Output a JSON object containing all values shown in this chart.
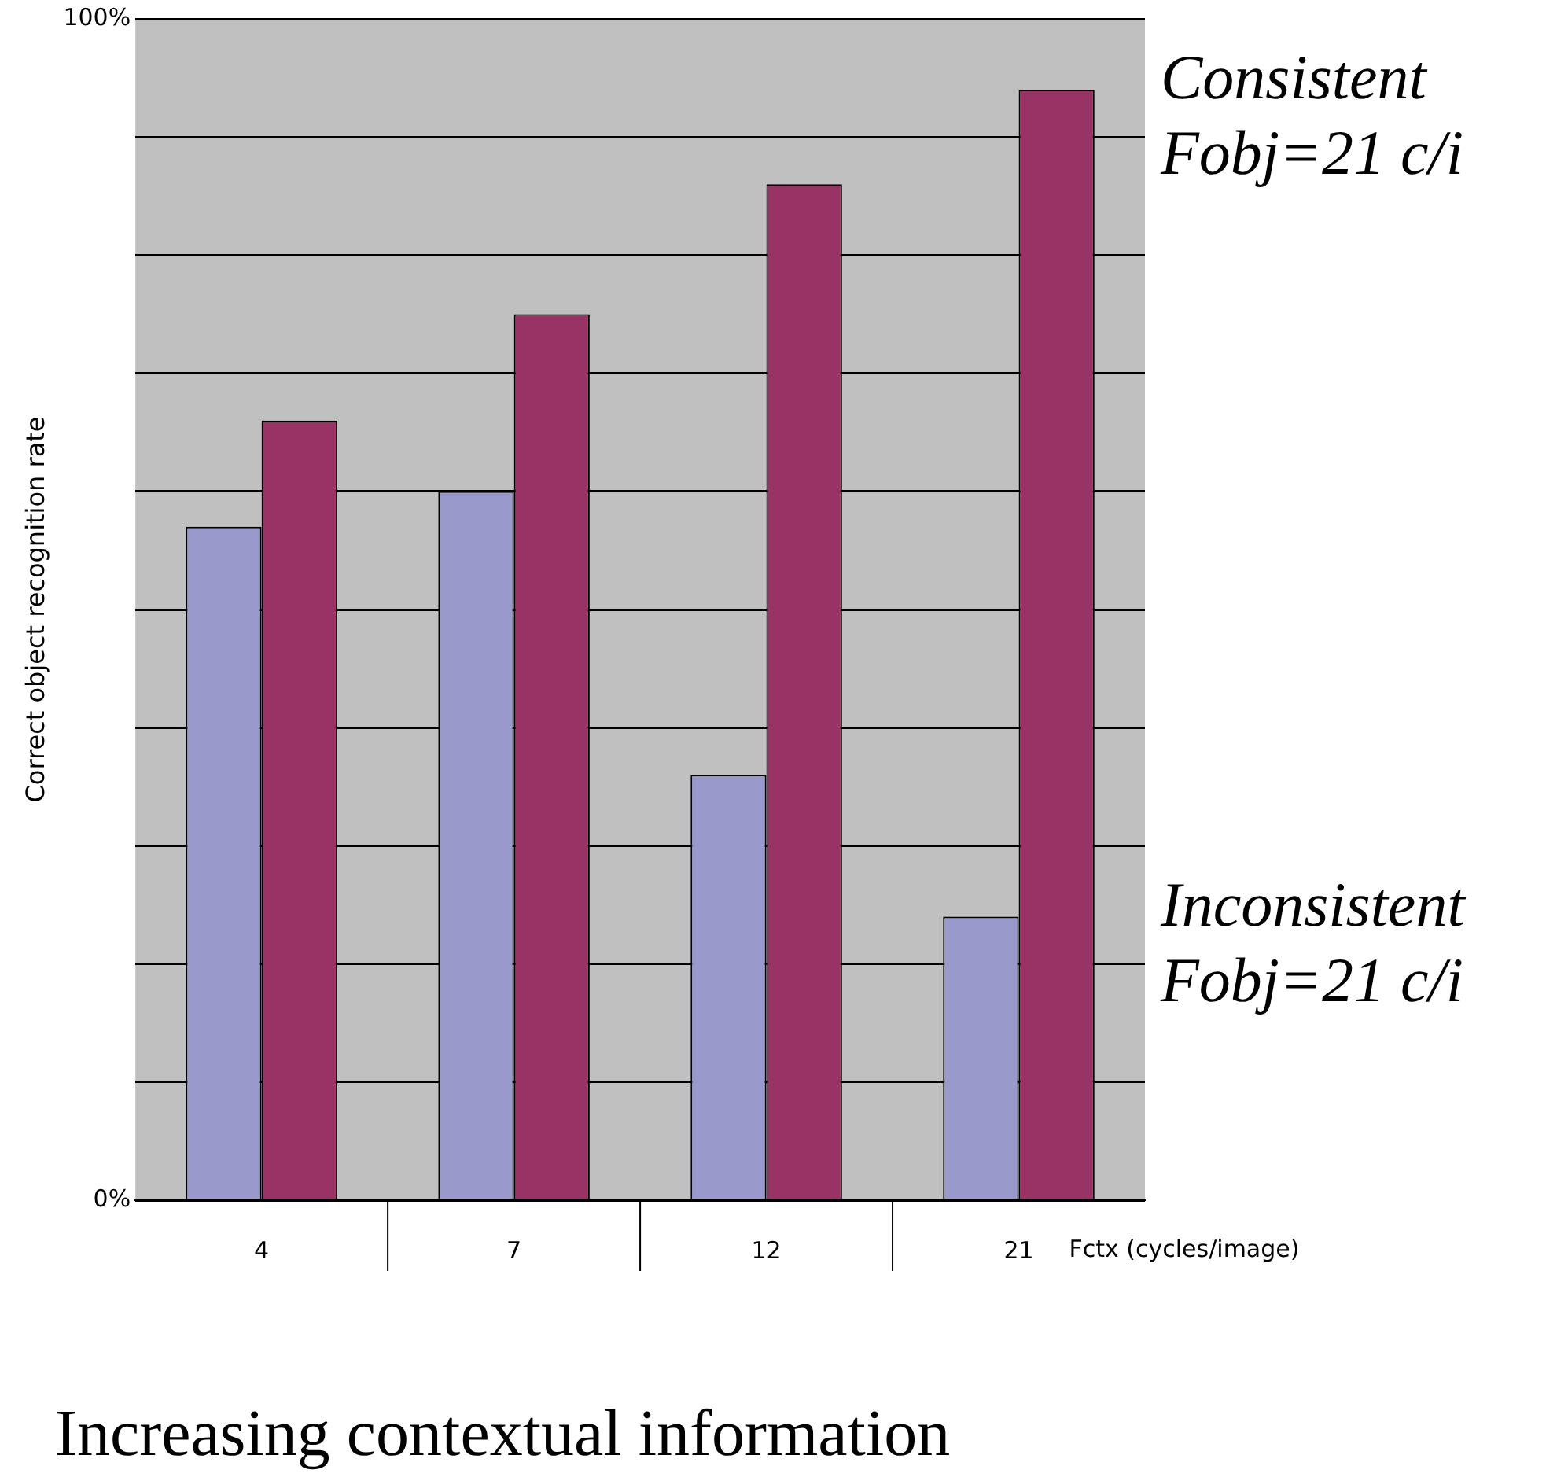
{
  "chart_data": {
    "type": "bar",
    "ylabel": "Correct object recognition rate",
    "xlabel": "Fctx (cycles/image)",
    "annotations": [
      "Increasing contextual information"
    ],
    "categories": [
      "4",
      "7",
      "12",
      "21"
    ],
    "series": [
      {
        "name": "Inconsistent Fobj=21 c/i",
        "color": "#9999cc",
        "values": [
          57,
          60,
          36,
          24
        ]
      },
      {
        "name": "Consistent Fobj=21 c/i",
        "color": "#993366",
        "values": [
          66,
          75,
          86,
          94
        ]
      }
    ],
    "ylim": [
      0,
      100
    ],
    "yticks": [
      {
        "value": 0,
        "label": "0%"
      },
      {
        "value": 10,
        "label": null
      },
      {
        "value": 20,
        "label": null
      },
      {
        "value": 30,
        "label": null
      },
      {
        "value": 40,
        "label": null
      },
      {
        "value": 50,
        "label": null
      },
      {
        "value": 60,
        "label": null
      },
      {
        "value": 70,
        "label": null
      },
      {
        "value": 80,
        "label": null
      },
      {
        "value": 90,
        "label": null
      },
      {
        "value": 100,
        "label": "100%"
      }
    ],
    "grid": "y",
    "legend": false
  }
}
